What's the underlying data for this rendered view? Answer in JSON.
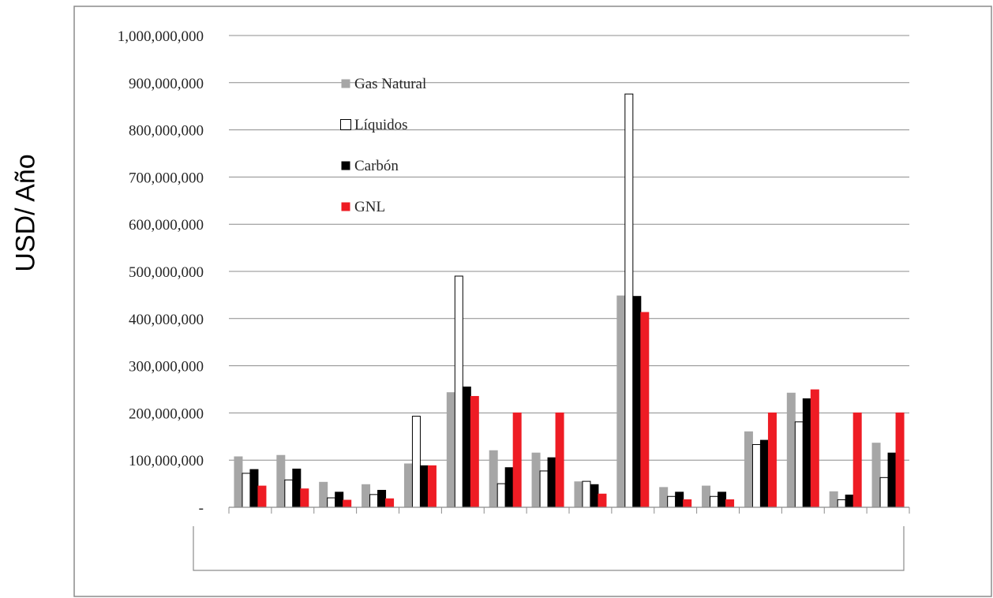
{
  "chart_data": {
    "type": "bar",
    "ylabel": "USD/ Año",
    "ylim": [
      0,
      1000000000
    ],
    "ytick_step": 100000000,
    "ytick_labels": [
      "-",
      "100,000,000",
      "200,000,000",
      "300,000,000",
      "400,000,000",
      "500,000,000",
      "600,000,000",
      "700,000,000",
      "800,000,000",
      "900,000,000",
      "1,000,000,000"
    ],
    "grid": true,
    "legend_position": "top-left",
    "categories": [
      "",
      "",
      "",
      "",
      "",
      "",
      "",
      "",
      "",
      "",
      "",
      "",
      "",
      "",
      "",
      ""
    ],
    "series": [
      {
        "name": "Gas Natural",
        "color": "#a6a6a6",
        "stroke": "#a6a6a6",
        "values": [
          107000000,
          110000000,
          53000000,
          48000000,
          92000000,
          243000000,
          120000000,
          115000000,
          54000000,
          448000000,
          42000000,
          45000000,
          160000000,
          242000000,
          33000000,
          136000000
        ]
      },
      {
        "name": "Líquidos",
        "color": "#ffffff",
        "stroke": "#000000",
        "values": [
          72000000,
          58000000,
          20000000,
          27000000,
          193000000,
          490000000,
          50000000,
          77000000,
          55000000,
          876000000,
          23000000,
          23000000,
          133000000,
          181000000,
          16000000,
          63000000
        ]
      },
      {
        "name": "Carbón",
        "color": "#000000",
        "stroke": "#000000",
        "values": [
          80000000,
          81000000,
          32000000,
          36000000,
          88000000,
          255000000,
          84000000,
          105000000,
          48000000,
          447000000,
          32000000,
          32000000,
          142000000,
          230000000,
          26000000,
          115000000
        ]
      },
      {
        "name": "GNL",
        "color": "#ee1c24",
        "stroke": "#ee1c24",
        "values": [
          45000000,
          39000000,
          15000000,
          18000000,
          88000000,
          235000000,
          200000000,
          200000000,
          28000000,
          413000000,
          16000000,
          16000000,
          200000000,
          249000000,
          200000000,
          200000000
        ]
      }
    ]
  }
}
